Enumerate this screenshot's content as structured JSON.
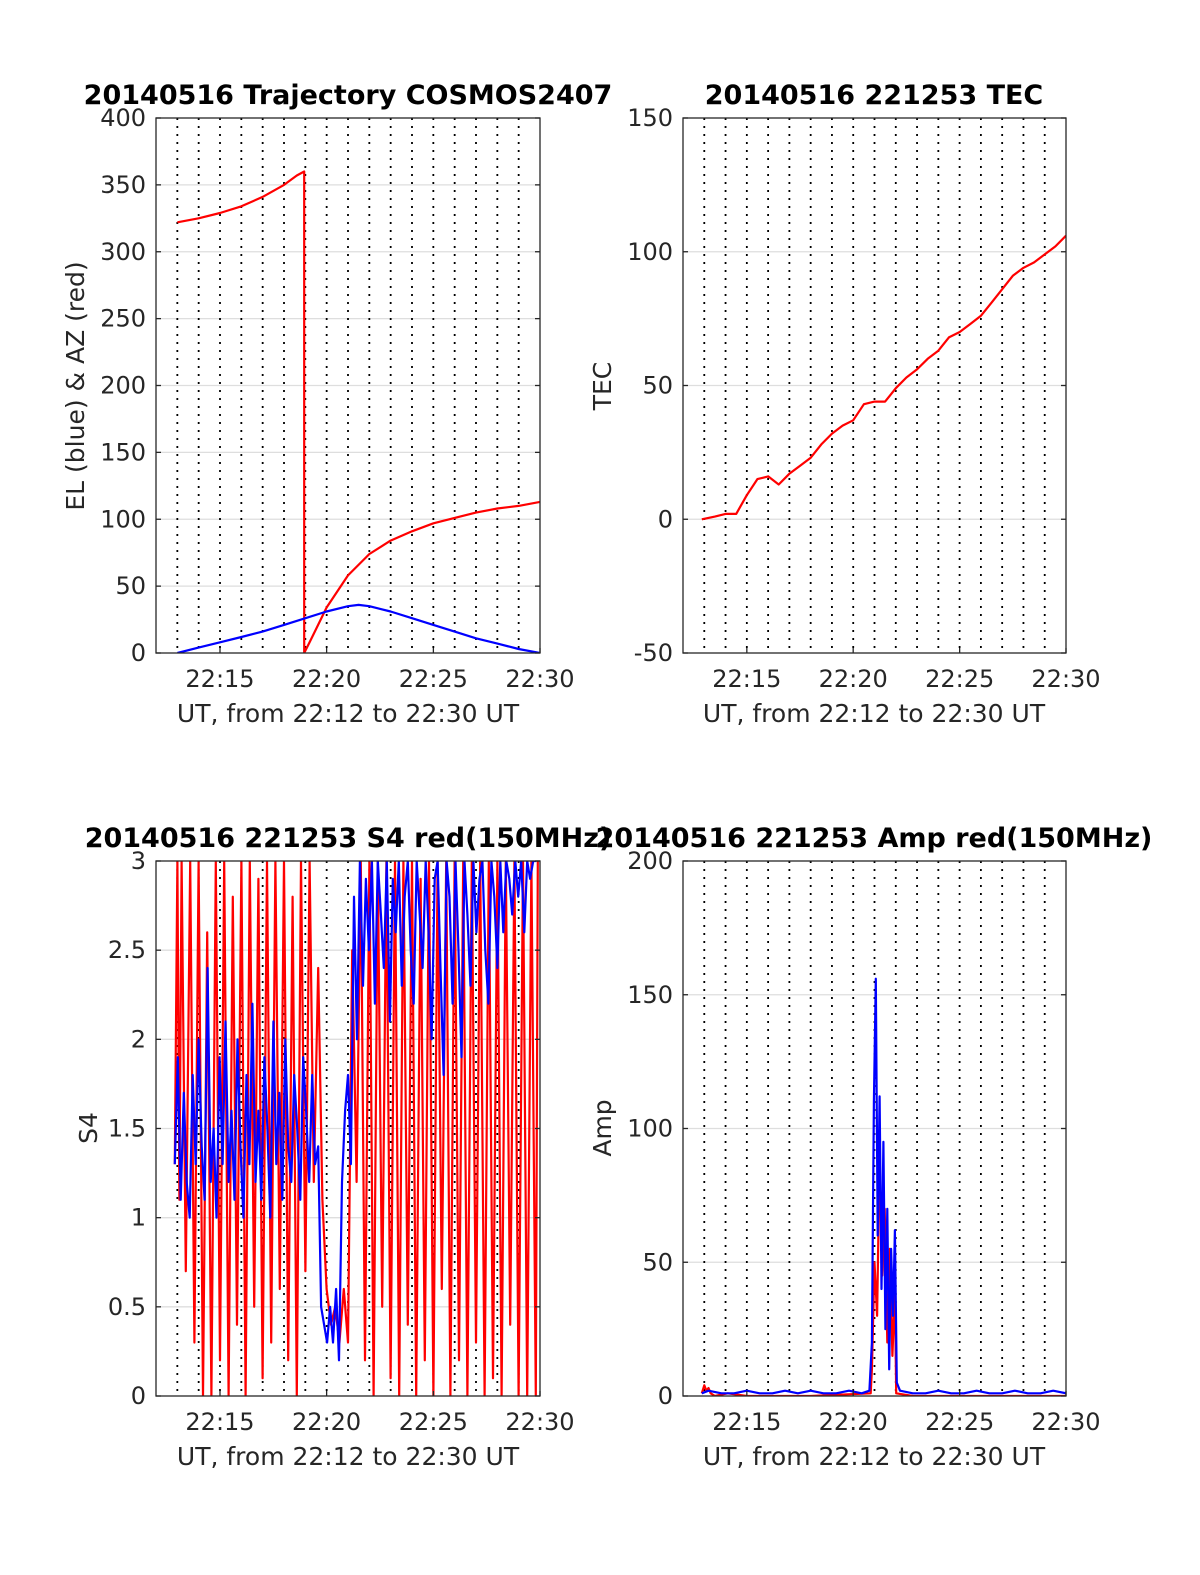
{
  "chart_data": [
    {
      "type": "line",
      "title": "20140516 Trajectory COSMOS2407",
      "xlabel": "UT, from 22:12 to 22:30 UT",
      "ylabel": "EL (blue) & AZ (red)",
      "xlim": [
        22.2,
        22.5
      ],
      "ylim": [
        0,
        400
      ],
      "xticks": [
        22.25,
        22.3333,
        22.4167,
        22.5
      ],
      "xtick_labels": [
        "22:15",
        "22:20",
        "22:25",
        "22:30"
      ],
      "yticks": [
        0,
        50,
        100,
        150,
        200,
        250,
        300,
        350,
        400
      ],
      "ytick_labels": [
        "0",
        "50",
        "100",
        "150",
        "200",
        "250",
        "300",
        "350",
        "400"
      ],
      "grid": true,
      "series": [
        {
          "color": "#ff0000",
          "x": [
            22.2167,
            22.2333,
            22.25,
            22.2667,
            22.2833,
            22.3,
            22.31,
            22.3158,
            22.3158,
            22.32,
            22.3333,
            22.35,
            22.3667,
            22.3833,
            22.4,
            22.4167,
            22.4333,
            22.45,
            22.4667,
            22.4833,
            22.5
          ],
          "y": [
            322,
            325,
            329,
            334,
            341,
            350,
            357,
            360,
            0,
            8,
            34,
            58,
            74,
            84,
            91,
            97,
            101,
            105,
            108,
            110,
            113
          ]
        },
        {
          "color": "#0000ff",
          "x": [
            22.2167,
            22.2333,
            22.25,
            22.2667,
            22.2833,
            22.3,
            22.3167,
            22.3333,
            22.35,
            22.3583,
            22.3667,
            22.3833,
            22.4,
            22.4167,
            22.4333,
            22.45,
            22.4667,
            22.4833,
            22.5
          ],
          "y": [
            0,
            4,
            8,
            12,
            16,
            21,
            26,
            31,
            35,
            36,
            35,
            31,
            26,
            21,
            16,
            11,
            7,
            3,
            0
          ]
        }
      ]
    },
    {
      "type": "line",
      "title": "20140516 221253 TEC",
      "xlabel": "UT, from 22:12 to 22:30 UT",
      "ylabel": "TEC",
      "xlim": [
        22.2,
        22.5
      ],
      "ylim": [
        -50,
        150
      ],
      "xticks": [
        22.25,
        22.3333,
        22.4167,
        22.5
      ],
      "xtick_labels": [
        "22:15",
        "22:20",
        "22:25",
        "22:30"
      ],
      "yticks": [
        -50,
        0,
        50,
        100,
        150
      ],
      "ytick_labels": [
        "-50",
        "0",
        "50",
        "100",
        "150"
      ],
      "grid": true,
      "series": [
        {
          "color": "#ff0000",
          "x": [
            22.2147,
            22.225,
            22.2333,
            22.2417,
            22.25,
            22.2583,
            22.2667,
            22.275,
            22.2833,
            22.2917,
            22.3,
            22.3083,
            22.3167,
            22.325,
            22.3333,
            22.3417,
            22.35,
            22.3583,
            22.3667,
            22.375,
            22.3833,
            22.3917,
            22.4,
            22.4083,
            22.4167,
            22.425,
            22.4333,
            22.4417,
            22.45,
            22.4583,
            22.4667,
            22.475,
            22.4833,
            22.4917,
            22.5
          ],
          "y": [
            0,
            1,
            2,
            2,
            9,
            15,
            16,
            13,
            17,
            20,
            23,
            28,
            32,
            35,
            37,
            43,
            44,
            44,
            49,
            53,
            56,
            60,
            63,
            68,
            70,
            73,
            76,
            81,
            86,
            91,
            94,
            96,
            99,
            102,
            106
          ]
        }
      ]
    },
    {
      "type": "line",
      "title": "20140516 221253 S4 red(150MHz)",
      "xlabel": "UT, from 22:12 to 22:30 UT",
      "ylabel": "S4",
      "xlim": [
        22.2,
        22.5
      ],
      "ylim": [
        0,
        3
      ],
      "xticks": [
        22.25,
        22.3333,
        22.4167,
        22.5
      ],
      "xtick_labels": [
        "22:15",
        "22:20",
        "22:25",
        "22:30"
      ],
      "yticks": [
        0,
        0.5,
        1,
        1.5,
        2,
        2.5,
        3
      ],
      "ytick_labels": [
        "0",
        "0.5",
        "1",
        "1.5",
        "2",
        "2.5",
        "3"
      ],
      "grid": true,
      "series": [
        {
          "color": "#ff0000",
          "x": [
            22.2147,
            22.2167,
            22.2183,
            22.22,
            22.2233,
            22.2267,
            22.23,
            22.2333,
            22.2367,
            22.24,
            22.2433,
            22.2467,
            22.25,
            22.2533,
            22.2567,
            22.26,
            22.2633,
            22.2667,
            22.27,
            22.2733,
            22.2767,
            22.28,
            22.2833,
            22.2867,
            22.29,
            22.2933,
            22.2967,
            22.3,
            22.3033,
            22.3067,
            22.31,
            22.3133,
            22.3167,
            22.32,
            22.3233,
            22.3267,
            22.33,
            22.3333,
            22.3367,
            22.34,
            22.3433,
            22.3467,
            22.35,
            22.3533,
            22.3567,
            22.36,
            22.3633,
            22.3667,
            22.37,
            22.3733,
            22.3767,
            22.38,
            22.3833,
            22.3867,
            22.39,
            22.3933,
            22.3967,
            22.4,
            22.4033,
            22.4067,
            22.41,
            22.4133,
            22.4167,
            22.42,
            22.4233,
            22.4267,
            22.43,
            22.4333,
            22.4367,
            22.44,
            22.4433,
            22.4467,
            22.45,
            22.4533,
            22.4567,
            22.46,
            22.4633,
            22.4667,
            22.47,
            22.4733,
            22.4767,
            22.48,
            22.4833,
            22.4867,
            22.49,
            22.4933,
            22.4967,
            22.4983
          ],
          "y": [
            1.3,
            3,
            1.1,
            3,
            0.7,
            3,
            0.3,
            3,
            0,
            2.6,
            0,
            3,
            0.2,
            3,
            0,
            2.8,
            0.4,
            3,
            0,
            3,
            0.5,
            2.9,
            0.1,
            3,
            0.3,
            3,
            0.6,
            3,
            0.2,
            2.8,
            0,
            3,
            0.7,
            3,
            1.2,
            2.4,
            1.1,
            0.6,
            0.4,
            0.5,
            0.3,
            0.6,
            0.3,
            2.5,
            1.2,
            3,
            0.2,
            3,
            0,
            3,
            0.5,
            3,
            0.1,
            3,
            0,
            3,
            0.4,
            3,
            0,
            2.9,
            0.2,
            3,
            0,
            3,
            0.6,
            3,
            0,
            3,
            0.2,
            3,
            0,
            3,
            0.3,
            3,
            0,
            3,
            0.1,
            3,
            0,
            3,
            0.4,
            3,
            0,
            3,
            0,
            3,
            0,
            3
          ]
        },
        {
          "color": "#0000ff",
          "x": [
            22.2147,
            22.217,
            22.2193,
            22.2217,
            22.224,
            22.2263,
            22.2287,
            22.231,
            22.2333,
            22.2357,
            22.238,
            22.2403,
            22.2427,
            22.245,
            22.2473,
            22.2497,
            22.252,
            22.2543,
            22.2567,
            22.259,
            22.2613,
            22.2637,
            22.266,
            22.2683,
            22.2707,
            22.273,
            22.2753,
            22.2777,
            22.28,
            22.2823,
            22.2847,
            22.287,
            22.2893,
            22.2917,
            22.294,
            22.2963,
            22.2987,
            22.301,
            22.3033,
            22.3057,
            22.308,
            22.3103,
            22.3127,
            22.315,
            22.3173,
            22.3197,
            22.322,
            22.3243,
            22.3267,
            22.329,
            22.3313,
            22.3337,
            22.336,
            22.3383,
            22.3407,
            22.343,
            22.3453,
            22.3477,
            22.35,
            22.3523,
            22.3547,
            22.357,
            22.3593,
            22.3617,
            22.364,
            22.3663,
            22.3687,
            22.371,
            22.3733,
            22.3757,
            22.378,
            22.3803,
            22.3827,
            22.385,
            22.3873,
            22.3897,
            22.392,
            22.3943,
            22.3967,
            22.399,
            22.4013,
            22.4037,
            22.406,
            22.4083,
            22.4107,
            22.413,
            22.4153,
            22.4177,
            22.42,
            22.4223,
            22.4247,
            22.427,
            22.4293,
            22.4317,
            22.434,
            22.4363,
            22.4387,
            22.441,
            22.4433,
            22.4457,
            22.448,
            22.4503,
            22.4527,
            22.455,
            22.4573,
            22.4597,
            22.462,
            22.4643,
            22.4667,
            22.469,
            22.4713,
            22.4737,
            22.476,
            22.4783,
            22.4807,
            22.483,
            22.4853,
            22.4877,
            22.49,
            22.4923,
            22.4947,
            22.497
          ],
          "y": [
            1.3,
            1.9,
            1.1,
            1.7,
            1.2,
            1.0,
            1.8,
            1.3,
            2.0,
            1.4,
            1.1,
            2.4,
            1.2,
            1.5,
            1.0,
            1.9,
            1.3,
            2.1,
            1.2,
            1.6,
            1.1,
            2.0,
            1.4,
            1.0,
            1.8,
            1.3,
            2.2,
            1.2,
            1.6,
            1.1,
            1.9,
            1.5,
            1.0,
            2.1,
            1.3,
            1.7,
            1.1,
            2.0,
            1.4,
            1.2,
            1.8,
            1.5,
            1.1,
            1.9,
            1.6,
            1.2,
            1.8,
            1.3,
            1.4,
            0.5,
            0.4,
            0.3,
            0.5,
            0.3,
            0.6,
            0.2,
            1.2,
            1.6,
            1.8,
            1.3,
            2.8,
            2.0,
            3.0,
            2.3,
            2.9,
            2.5,
            3.0,
            2.2,
            3.0,
            2.7,
            2.4,
            3.0,
            2.1,
            2.9,
            2.6,
            3.0,
            2.3,
            2.8,
            3.0,
            2.5,
            2.2,
            3.0,
            2.7,
            2.4,
            3.0,
            2.6,
            2.0,
            2.9,
            3.0,
            2.4,
            1.8,
            3.0,
            2.8,
            2.2,
            3.0,
            2.5,
            1.9,
            3.0,
            2.7,
            2.3,
            3.0,
            2.6,
            2.9,
            3.0,
            2.5,
            2.2,
            3.0,
            2.8,
            2.4,
            3.0,
            2.6,
            3.0,
            2.9,
            2.7,
            3.0,
            2.8,
            3.0,
            2.6,
            3.0,
            2.9,
            3.0,
            3.0
          ]
        }
      ]
    },
    {
      "type": "line",
      "title": "20140516 221253 Amp red(150MHz)",
      "xlabel": "UT, from 22:12 to 22:30 UT",
      "ylabel": "Amp",
      "xlim": [
        22.2,
        22.5
      ],
      "ylim": [
        0,
        200
      ],
      "xticks": [
        22.25,
        22.3333,
        22.4167,
        22.5
      ],
      "xtick_labels": [
        "22:15",
        "22:20",
        "22:25",
        "22:30"
      ],
      "yticks": [
        0,
        50,
        100,
        150,
        200
      ],
      "ytick_labels": [
        "0",
        "50",
        "100",
        "150",
        "200"
      ],
      "grid": true,
      "series": [
        {
          "color": "#ff0000",
          "x": [
            22.2147,
            22.2167,
            22.2183,
            22.22,
            22.2217,
            22.225,
            22.235,
            22.25,
            22.3,
            22.347,
            22.348,
            22.35,
            22.352,
            22.354,
            22.356,
            22.358,
            22.36,
            22.362,
            22.364,
            22.366,
            22.367,
            22.38,
            22.42,
            22.46,
            22.5
          ],
          "y": [
            1,
            4,
            2,
            3,
            1,
            0,
            1,
            0,
            0,
            1,
            10,
            50,
            30,
            90,
            45,
            70,
            20,
            55,
            15,
            40,
            1,
            0,
            0,
            0,
            0
          ]
        },
        {
          "color": "#0000ff",
          "x": [
            22.2147,
            22.22,
            22.23,
            22.24,
            22.25,
            22.26,
            22.27,
            22.28,
            22.29,
            22.3,
            22.31,
            22.32,
            22.33,
            22.34,
            22.346,
            22.348,
            22.3495,
            22.351,
            22.3525,
            22.354,
            22.3555,
            22.357,
            22.3585,
            22.36,
            22.3615,
            22.363,
            22.3645,
            22.366,
            22.3675,
            22.37,
            22.38,
            22.39,
            22.4,
            22.41,
            22.42,
            22.43,
            22.44,
            22.45,
            22.46,
            22.47,
            22.48,
            22.49,
            22.5
          ],
          "y": [
            1,
            2,
            1,
            1,
            2,
            1,
            1,
            2,
            1,
            2,
            1,
            1,
            2,
            1,
            2,
            20,
            110,
            156,
            60,
            112,
            40,
            95,
            25,
            70,
            10,
            55,
            30,
            62,
            5,
            2,
            1,
            1,
            2,
            1,
            1,
            2,
            1,
            1,
            2,
            1,
            1,
            2,
            1
          ]
        }
      ]
    }
  ]
}
